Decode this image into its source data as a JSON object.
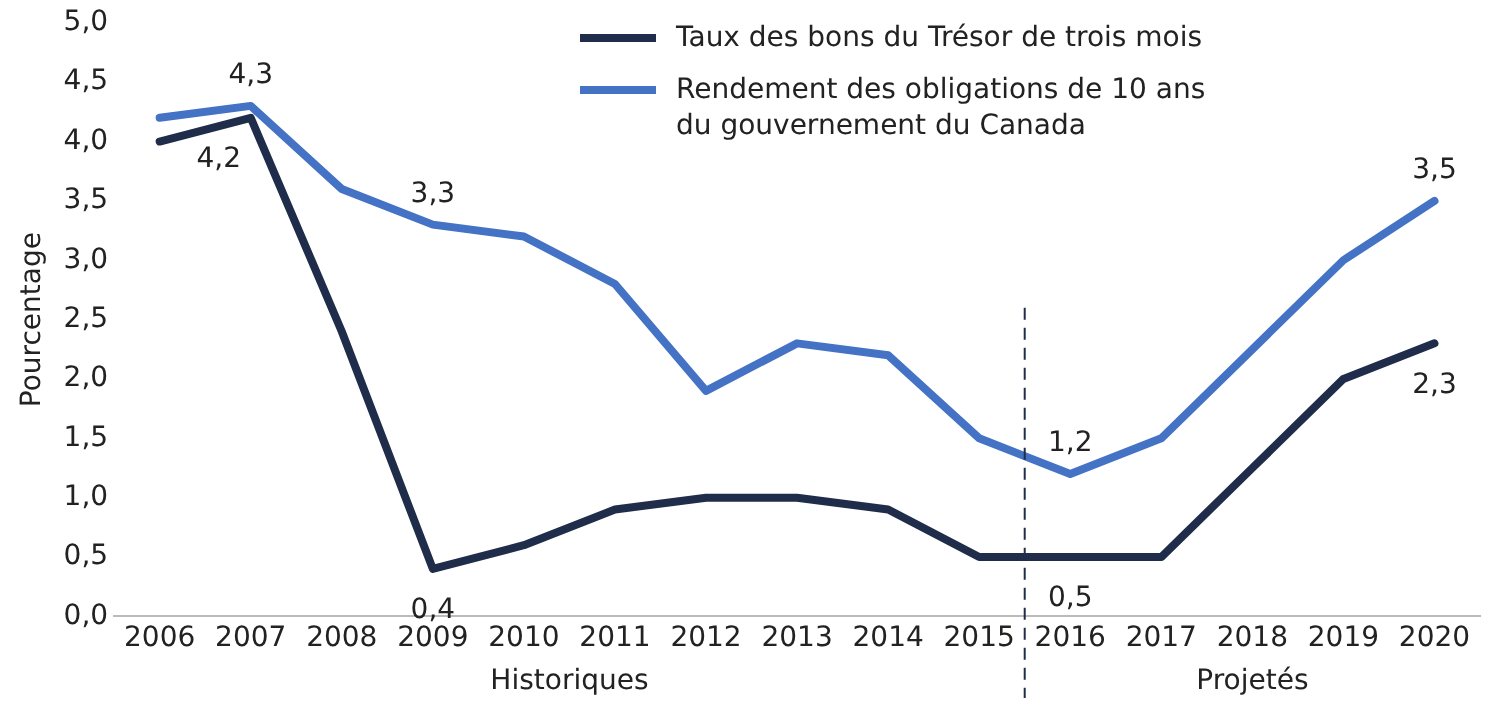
{
  "chart_data": {
    "type": "line",
    "ylabel": "Pourcentage",
    "x": [
      2006,
      2007,
      2008,
      2009,
      2010,
      2011,
      2012,
      2013,
      2014,
      2015,
      2016,
      2017,
      2018,
      2019,
      2020
    ],
    "xlim": [
      2005.5,
      2020.5
    ],
    "xticks": [
      2006,
      2007,
      2008,
      2009,
      2010,
      2011,
      2012,
      2013,
      2014,
      2015,
      2016,
      2017,
      2018,
      2019,
      2020
    ],
    "ylim": [
      0,
      5
    ],
    "yticks": [
      {
        "value": 0,
        "label": "0,0"
      },
      {
        "value": 0.5,
        "label": "0,5"
      },
      {
        "value": 1,
        "label": "1,0"
      },
      {
        "value": 1.5,
        "label": "1,5"
      },
      {
        "value": 2,
        "label": "2,0"
      },
      {
        "value": 2.5,
        "label": "2,5"
      },
      {
        "value": 3,
        "label": "3,0"
      },
      {
        "value": 3.5,
        "label": "3,5"
      },
      {
        "value": 4,
        "label": "4,0"
      },
      {
        "value": 4.5,
        "label": "4,5"
      },
      {
        "value": 5,
        "label": "5,0"
      }
    ],
    "series": [
      {
        "name": "Taux des bons du Trésor de trois mois",
        "color": "#1f2d4a",
        "values": [
          4.0,
          4.2,
          2.4,
          0.4,
          0.6,
          0.9,
          1.0,
          1.0,
          0.9,
          0.5,
          0.5,
          0.5,
          1.25,
          2.0,
          2.3
        ],
        "value_labels": [
          null,
          "4,2",
          null,
          "0,4",
          null,
          null,
          null,
          null,
          null,
          null,
          "0,5",
          null,
          null,
          null,
          "2,3"
        ]
      },
      {
        "name": "Rendement des obligations de 10 ans du gouvernement du Canada",
        "color": "#4472c4",
        "values": [
          4.2,
          4.3,
          3.6,
          3.3,
          3.2,
          2.8,
          1.9,
          2.3,
          2.2,
          1.5,
          1.2,
          1.5,
          2.25,
          3.0,
          3.5
        ],
        "value_labels": [
          null,
          "4,3",
          null,
          "3,3",
          null,
          null,
          null,
          null,
          null,
          null,
          "1,2",
          null,
          null,
          null,
          "3,5"
        ]
      }
    ],
    "ref_lines": [
      {
        "axis": "x",
        "value": 2015.5,
        "line_style": "dashed",
        "color": "#1f2d4a"
      }
    ],
    "annotations": [
      "Historiques",
      "Projetés"
    ],
    "grid": false,
    "legend": "top right",
    "marker": "none",
    "line_style": "solid"
  }
}
